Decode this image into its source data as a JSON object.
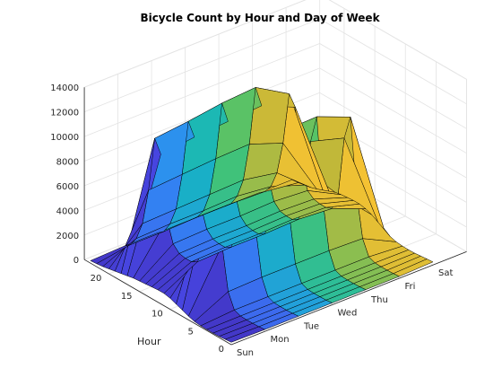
{
  "chart_data": {
    "type": "surface",
    "title": "Bicycle Count by Hour and Day of Week",
    "xlabel": "",
    "ylabel": "Hour",
    "zlabel": "",
    "days": [
      "Sun",
      "Mon",
      "Tue",
      "Wed",
      "Thu",
      "Fri",
      "Sat"
    ],
    "hours": [
      0,
      1,
      2,
      3,
      4,
      5,
      6,
      7,
      8,
      9,
      10,
      11,
      12,
      13,
      14,
      15,
      16,
      17,
      18,
      19,
      20,
      21,
      22,
      23
    ],
    "hour_ticks": [
      0,
      5,
      10,
      15,
      20
    ],
    "zticks": [
      0,
      2000,
      4000,
      6000,
      8000,
      10000,
      12000,
      14000
    ],
    "zlim": [
      0,
      14000
    ],
    "colormap": [
      "#3e26a8",
      "#4849e7",
      "#2f8cf4",
      "#15b6be",
      "#49c46d",
      "#c6b837",
      "#fcc432",
      "#f9fb15"
    ],
    "series": [
      {
        "name": "Sun",
        "values": [
          200,
          150,
          100,
          80,
          80,
          100,
          150,
          300,
          500,
          700,
          900,
          1000,
          1000,
          950,
          900,
          850,
          800,
          700,
          600,
          500,
          400,
          300,
          250,
          200
        ]
      },
      {
        "name": "Mon",
        "values": [
          150,
          100,
          80,
          80,
          100,
          300,
          1500,
          5000,
          11000,
          9000,
          4000,
          2500,
          2200,
          2200,
          2300,
          2800,
          4500,
          9500,
          10500,
          6000,
          3000,
          1500,
          700,
          300
        ]
      },
      {
        "name": "Tue",
        "values": [
          150,
          100,
          80,
          80,
          100,
          300,
          1600,
          5200,
          11500,
          9300,
          4100,
          2600,
          2300,
          2300,
          2400,
          2900,
          4600,
          9800,
          10800,
          6200,
          3100,
          1600,
          700,
          300
        ]
      },
      {
        "name": "Wed",
        "values": [
          150,
          100,
          80,
          80,
          100,
          300,
          1600,
          5300,
          11800,
          9500,
          4200,
          2600,
          2300,
          2300,
          2400,
          2900,
          4700,
          10000,
          11200,
          6400,
          3200,
          1600,
          800,
          300
        ]
      },
      {
        "name": "Thu",
        "values": [
          150,
          100,
          80,
          80,
          100,
          300,
          1600,
          5300,
          11900,
          9600,
          4200,
          2700,
          2400,
          2400,
          2500,
          3000,
          4800,
          10200,
          11400,
          6500,
          3300,
          1700,
          800,
          300
        ]
      },
      {
        "name": "Fri",
        "values": [
          150,
          100,
          80,
          80,
          100,
          300,
          1500,
          4900,
          10800,
          8800,
          3900,
          2500,
          2300,
          2300,
          2400,
          2800,
          4400,
          9000,
          9800,
          5500,
          2800,
          1400,
          700,
          300
        ]
      },
      {
        "name": "Sat",
        "values": [
          250,
          200,
          150,
          100,
          80,
          100,
          150,
          300,
          600,
          900,
          1200,
          1400,
          1500,
          1500,
          1450,
          1400,
          1300,
          1100,
          900,
          700,
          550,
          450,
          350,
          300
        ]
      }
    ]
  }
}
